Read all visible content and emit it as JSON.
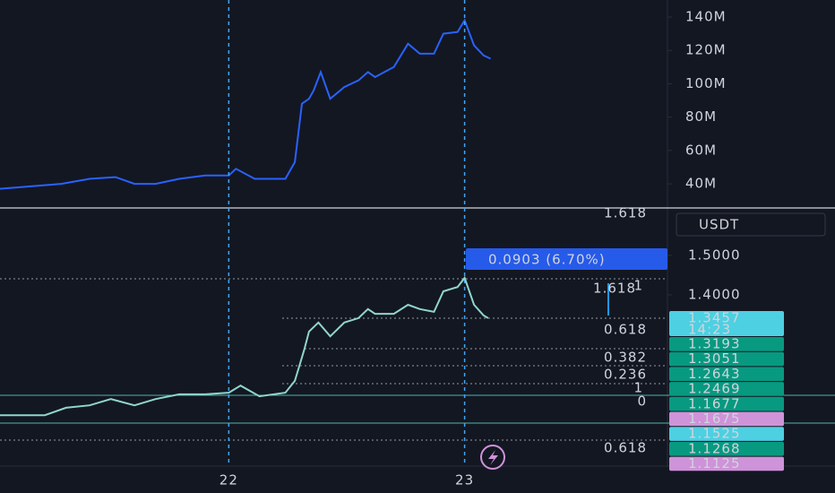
{
  "chart_data": [
    {
      "type": "line",
      "color": "#2962ff",
      "x": [
        21.03,
        21.29,
        21.41,
        21.52,
        21.6,
        21.69,
        21.79,
        21.9,
        22.0,
        22.03,
        22.11,
        22.24,
        22.28,
        22.31,
        22.34,
        22.36,
        22.39,
        22.43,
        22.49,
        22.55,
        22.59,
        22.62,
        22.7,
        22.76,
        22.81,
        22.87,
        22.91,
        22.97,
        23.0,
        23.04,
        23.08,
        23.11
      ],
      "values": [
        37,
        40,
        43,
        44,
        40,
        40,
        43,
        45,
        45,
        49,
        43,
        43,
        53,
        88,
        91,
        96,
        107,
        91,
        98,
        102,
        107,
        104,
        110,
        124,
        118,
        118,
        130,
        131,
        138,
        123,
        117,
        115
      ],
      "xlim": [
        21.03,
        23.86
      ],
      "ylim": [
        26.6,
        150.2
      ],
      "yticks": [
        {
          "value": 140,
          "label": "140M"
        },
        {
          "value": 120,
          "label": "120M"
        },
        {
          "value": 100,
          "label": "100M"
        },
        {
          "value": 80,
          "label": "80M"
        },
        {
          "value": 60,
          "label": "60M"
        },
        {
          "value": 40,
          "label": "40M"
        }
      ]
    },
    {
      "type": "line",
      "color": "#8fd6cc",
      "x": [
        21.03,
        21.22,
        21.31,
        21.41,
        21.5,
        21.6,
        21.69,
        21.79,
        21.9,
        22.0,
        22.05,
        22.13,
        22.24,
        22.28,
        22.32,
        22.34,
        22.38,
        22.43,
        22.49,
        22.55,
        22.59,
        22.62,
        22.7,
        22.76,
        22.81,
        22.87,
        22.91,
        22.97,
        23.0,
        23.04,
        23.08,
        23.1
      ],
      "values": [
        1.095,
        1.095,
        1.114,
        1.12,
        1.136,
        1.12,
        1.136,
        1.148,
        1.148,
        1.152,
        1.17,
        1.143,
        1.152,
        1.182,
        1.261,
        1.307,
        1.33,
        1.295,
        1.33,
        1.341,
        1.364,
        1.352,
        1.352,
        1.375,
        1.364,
        1.357,
        1.409,
        1.42,
        1.443,
        1.375,
        1.348,
        1.341
      ],
      "xlim": [
        21.03,
        23.86
      ],
      "ylim": [
        0.966,
        1.618
      ],
      "yticks": [
        {
          "value": 1.5,
          "label": "1.5000"
        },
        {
          "value": 1.4,
          "label": "1.4000"
        }
      ],
      "xticks": [
        {
          "value": 22,
          "label": "22"
        },
        {
          "value": 23,
          "label": "23"
        }
      ]
    }
  ],
  "measure": "0.0903 (6.70%)",
  "currency": "USDT",
  "fib_labels": [
    "1.618",
    "1.618",
    "1",
    "0.618",
    "0.382",
    "0.236",
    "1",
    "0",
    "0.618"
  ],
  "price_badges": [
    {
      "text": "1.3457",
      "sub": "14:23",
      "color": "#4dd0e1"
    },
    {
      "text": "1.3193",
      "color": "#089981"
    },
    {
      "text": "1.3051",
      "color": "#089981"
    },
    {
      "text": "1.2643",
      "color": "#089981"
    },
    {
      "text": "1.2469",
      "color": "#089981"
    },
    {
      "text": "1.1677",
      "color": "#089981"
    },
    {
      "text": "1.1675",
      "color": "#ce93d8"
    },
    {
      "text": "1.1525",
      "color": "#4dd0e1"
    },
    {
      "text": "1.1268",
      "color": "#089981"
    },
    {
      "text": "1.1125",
      "color": "#ce93d8"
    }
  ]
}
